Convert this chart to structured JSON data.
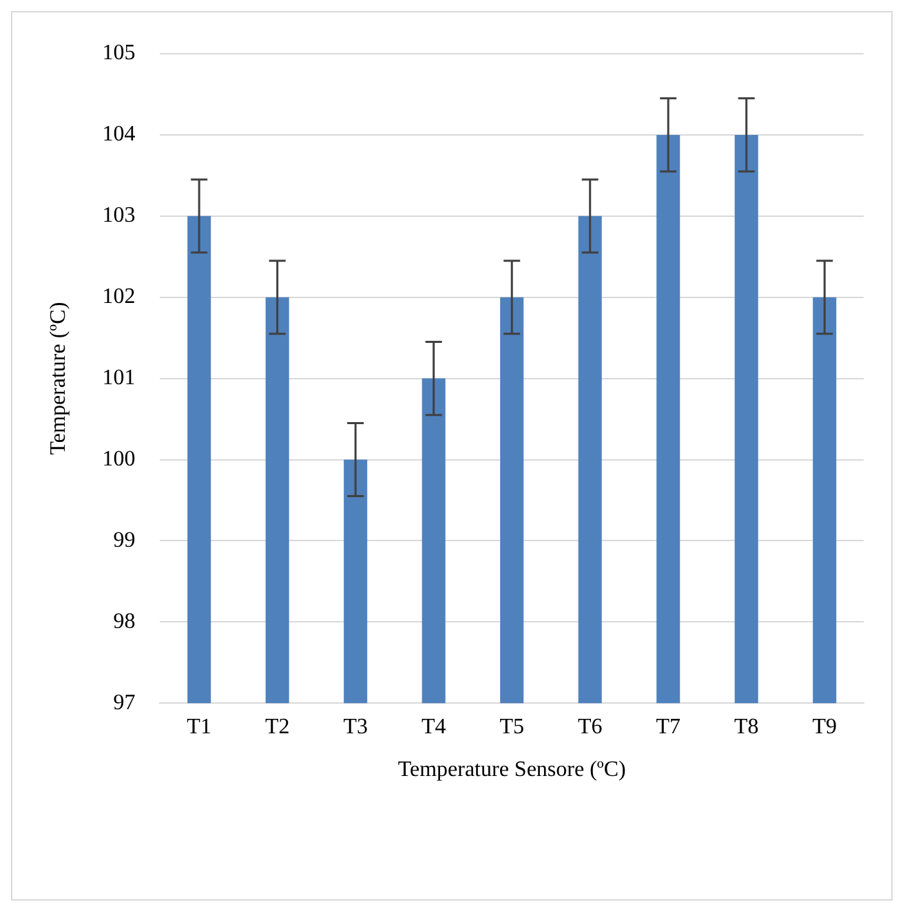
{
  "chart_data": {
    "type": "bar",
    "xlabel": "Temperature Sensore (ºC)",
    "ylabel": "Temperature (ºC)",
    "categories": [
      "T1",
      "T2",
      "T3",
      "T4",
      "T5",
      "T6",
      "T7",
      "T8",
      "T9"
    ],
    "values": [
      103,
      102,
      100,
      101,
      102,
      103,
      104,
      104,
      102
    ],
    "errors": [
      0.45,
      0.45,
      0.45,
      0.45,
      0.45,
      0.45,
      0.45,
      0.45,
      0.45
    ],
    "color": "#4f81bd",
    "ylim": [
      97,
      105
    ],
    "yticks": [
      97,
      98,
      99,
      100,
      101,
      102,
      103,
      104,
      105
    ],
    "grid": "y",
    "legend": false
  }
}
